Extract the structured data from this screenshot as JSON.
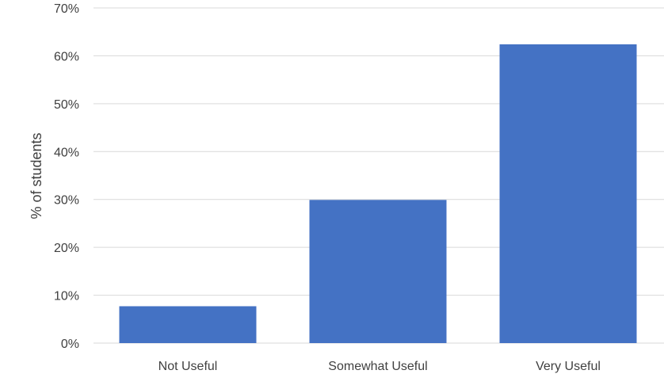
{
  "chart_data": {
    "type": "bar",
    "categories": [
      "Not Useful",
      "Somewhat Useful",
      "Very Useful"
    ],
    "values": [
      7.7,
      29.9,
      62.4
    ],
    "ylabel": "% of students",
    "xlabel": "",
    "ylim": [
      0,
      70
    ],
    "yticks": [
      0,
      10,
      20,
      30,
      40,
      50,
      60,
      70
    ],
    "ytick_labels": [
      "0%",
      "10%",
      "20%",
      "30%",
      "40%",
      "50%",
      "60%",
      "70%"
    ],
    "bar_color": "#4472C4",
    "grid": true,
    "legend": "none"
  }
}
